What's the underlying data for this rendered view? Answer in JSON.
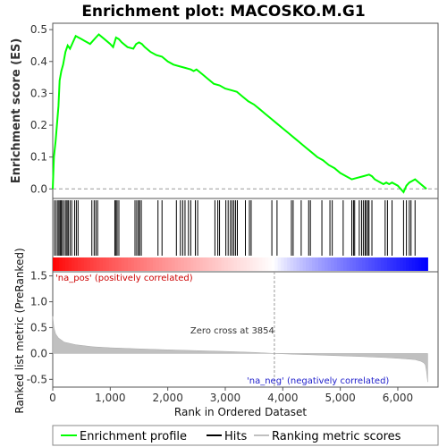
{
  "title": "Enrichment plot: MACOSKO.M.G1",
  "chart_data": [
    {
      "type": "line",
      "panel": "enrichment",
      "ylabel": "Enrichment score (ES)",
      "yticks": [
        "0.0",
        "0.1",
        "0.2",
        "0.3",
        "0.4",
        "0.5"
      ],
      "ylim": [
        -0.03,
        0.52
      ],
      "xlim": [
        0,
        6700
      ],
      "grid": false,
      "line_color": "#00ff00",
      "series": [
        {
          "name": "Enrichment profile",
          "x": [
            0,
            20,
            50,
            100,
            120,
            150,
            180,
            220,
            260,
            300,
            350,
            400,
            450,
            500,
            550,
            600,
            650,
            700,
            750,
            800,
            900,
            1000,
            1050,
            1100,
            1150,
            1200,
            1300,
            1400,
            1450,
            1500,
            1550,
            1600,
            1700,
            1800,
            1900,
            2000,
            2100,
            2200,
            2300,
            2400,
            2450,
            2500,
            2600,
            2700,
            2800,
            2900,
            3000,
            3100,
            3200,
            3300,
            3400,
            3500,
            3600,
            3700,
            3800,
            3900,
            4000,
            4100,
            4200,
            4300,
            4400,
            4500,
            4600,
            4700,
            4800,
            4900,
            5000,
            5100,
            5200,
            5300,
            5400,
            5500,
            5550,
            5600,
            5700,
            5750,
            5800,
            5850,
            5900,
            6000,
            6100,
            6150,
            6200,
            6250,
            6300,
            6400,
            6500
          ],
          "y": [
            0.0,
            0.1,
            0.15,
            0.26,
            0.34,
            0.37,
            0.39,
            0.43,
            0.45,
            0.44,
            0.46,
            0.48,
            0.475,
            0.47,
            0.465,
            0.46,
            0.455,
            0.465,
            0.475,
            0.485,
            0.47,
            0.455,
            0.445,
            0.475,
            0.47,
            0.46,
            0.445,
            0.44,
            0.455,
            0.46,
            0.455,
            0.445,
            0.43,
            0.42,
            0.415,
            0.4,
            0.39,
            0.385,
            0.38,
            0.375,
            0.37,
            0.375,
            0.36,
            0.345,
            0.33,
            0.325,
            0.315,
            0.31,
            0.305,
            0.29,
            0.275,
            0.265,
            0.25,
            0.235,
            0.22,
            0.205,
            0.19,
            0.175,
            0.16,
            0.145,
            0.13,
            0.115,
            0.1,
            0.09,
            0.075,
            0.065,
            0.05,
            0.04,
            0.03,
            0.035,
            0.04,
            0.045,
            0.04,
            0.03,
            0.02,
            0.015,
            0.02,
            0.015,
            0.02,
            0.01,
            -0.01,
            0.01,
            0.02,
            0.025,
            0.03,
            0.015,
            0.0
          ]
        }
      ]
    },
    {
      "type": "scatter",
      "panel": "hits",
      "series": [
        {
          "name": "Hits",
          "x": [
            30,
            60,
            90,
            110,
            130,
            150,
            170,
            200,
            230,
            250,
            270,
            300,
            330,
            380,
            410,
            440,
            680,
            720,
            750,
            780,
            1080,
            1100,
            1120,
            1150,
            1430,
            1460,
            1490,
            1510,
            1540,
            1830,
            1900,
            2150,
            2220,
            2260,
            2300,
            2360,
            2400,
            2480,
            2520,
            2820,
            2870,
            2900,
            3010,
            3050,
            3090,
            3120,
            3150,
            3180,
            3210,
            3350,
            3420,
            3450,
            3810,
            3900,
            4150,
            4180,
            4320,
            4450,
            4480,
            4680,
            4820,
            4860,
            5050,
            5200,
            5230,
            5250,
            5330,
            5370,
            5400,
            5430,
            5450,
            5480,
            5500,
            5550,
            5780,
            5820,
            5900,
            6100,
            6150,
            6200,
            6230,
            6300
          ]
        }
      ]
    },
    {
      "type": "area",
      "panel": "ranked-metric",
      "ylabel": "Ranked list metric (PreRanked)",
      "xlabel": "Rank in Ordered Dataset",
      "yticks": [
        "-0.5",
        "0.0",
        "0.5",
        "1.0",
        "1.5"
      ],
      "xticks": [
        "0",
        "1,000",
        "2,000",
        "3,000",
        "4,000",
        "5,000",
        "6,000"
      ],
      "xlim": [
        0,
        6700
      ],
      "ylim": [
        -0.65,
        1.58
      ],
      "fill_color": "#c0c0c0",
      "series": [
        {
          "name": "Ranking metric scores",
          "x": [
            0,
            20,
            50,
            100,
            200,
            400,
            700,
            1000,
            1500,
            2000,
            2500,
            3000,
            3500,
            3854,
            4200,
            4600,
            5000,
            5400,
            5800,
            6100,
            6300,
            6400,
            6450,
            6480,
            6500,
            6520
          ],
          "y": [
            0.72,
            0.5,
            0.38,
            0.3,
            0.22,
            0.17,
            0.13,
            0.11,
            0.09,
            0.07,
            0.055,
            0.04,
            0.02,
            0.0,
            -0.015,
            -0.03,
            -0.045,
            -0.06,
            -0.08,
            -0.1,
            -0.12,
            -0.15,
            -0.18,
            -0.22,
            -0.35,
            -0.55
          ]
        }
      ],
      "annotations": {
        "zero_cross_x": 3854,
        "zero_cross_text": "Zero cross at 3854",
        "pos_label": "'na_pos' (positively correlated)",
        "neg_label": "'na_neg' (negatively correlated)"
      }
    }
  ],
  "colors": {
    "profile": "#00ff00",
    "hits": "#000000",
    "metric": "#c0c0c0",
    "pos_label": "#cc0000",
    "neg_label": "#2222cc",
    "heat_pos": "#ff0000",
    "heat_neg": "#0000ff"
  },
  "legend": {
    "profile": "Enrichment profile",
    "hits": "Hits",
    "metric": "Ranking metric scores"
  }
}
